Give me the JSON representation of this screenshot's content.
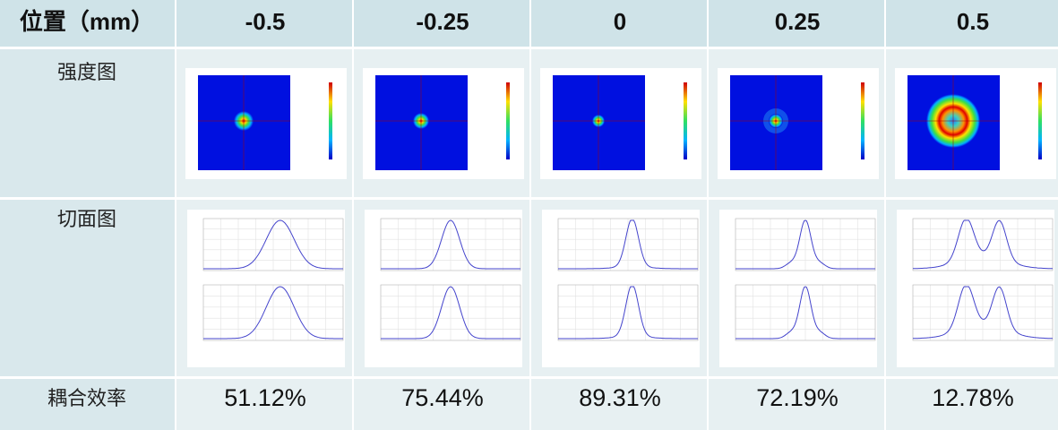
{
  "table": {
    "header": [
      "位置（mm）",
      "-0.5",
      "-0.25",
      "0",
      "0.25",
      "0.5"
    ],
    "rows": [
      {
        "label": "强度图"
      },
      {
        "label": "切面图"
      },
      {
        "label": "耦合效率",
        "cells": [
          "51.12%",
          "75.44%",
          "89.31%",
          "72.19%",
          "12.78%"
        ]
      }
    ]
  }
}
